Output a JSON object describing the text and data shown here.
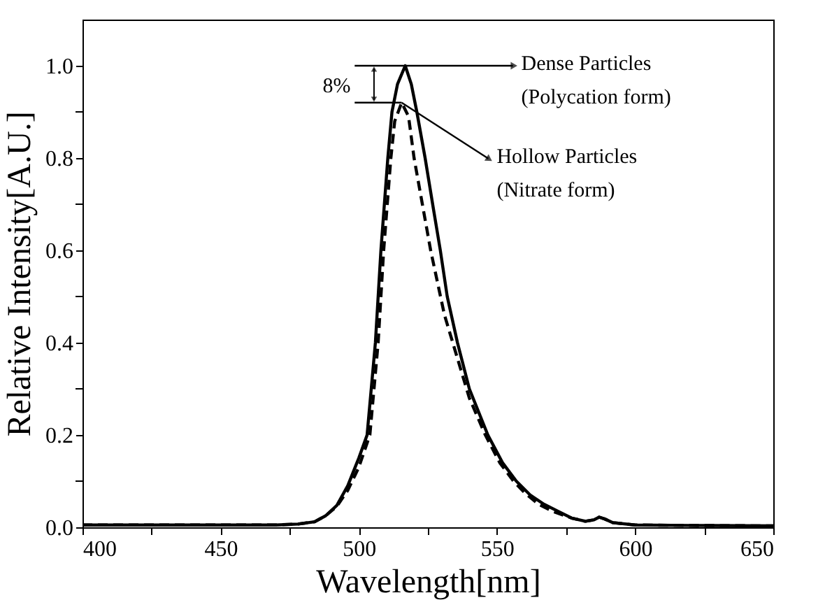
{
  "chart_data": {
    "type": "line",
    "xlabel": "Wavelength[nm]",
    "ylabel": "Relative Intensity[A.U.]",
    "xlim": [
      400,
      650
    ],
    "ylim": [
      0,
      1.1
    ],
    "xticks": [
      400,
      {
        "value": 425,
        "label": null
      },
      450,
      {
        "value": 475,
        "label": null
      },
      500,
      {
        "value": 525,
        "label": null
      },
      550,
      {
        "value": 575,
        "label": null
      },
      600,
      {
        "value": 625,
        "label": null
      },
      650
    ],
    "yticks": [
      {
        "value": 0,
        "label": "0.0"
      },
      {
        "value": 0.1,
        "label": null
      },
      0.2,
      {
        "value": 0.3,
        "label": null
      },
      0.4,
      {
        "value": 0.5,
        "label": null
      },
      0.6,
      {
        "value": 0.7,
        "label": null
      },
      0.8,
      {
        "value": 0.9,
        "label": null
      },
      {
        "value": 1,
        "label": "1.0"
      }
    ],
    "legend": "top right",
    "series": [
      {
        "name": "Dense Particles\n(Polycation form)",
        "color": "#000000",
        "line_style": "solid",
        "x": [
          400,
          440,
          470,
          478,
          484,
          488,
          492,
          496,
          500,
          503,
          506,
          508,
          510.5,
          512,
          514,
          516.8,
          519,
          521,
          524,
          527,
          529.5,
          532,
          535.7,
          540,
          546.7,
          552,
          557,
          562,
          567,
          572,
          577,
          582,
          585,
          587,
          589,
          592,
          600,
          620,
          650
        ],
        "values": [
          0.005,
          0.005,
          0.005,
          0.007,
          0.012,
          0.025,
          0.047,
          0.09,
          0.15,
          0.2,
          0.4,
          0.6,
          0.8,
          0.9,
          0.96,
          1.0,
          0.96,
          0.9,
          0.8,
          0.69,
          0.6,
          0.5,
          0.4,
          0.3,
          0.2,
          0.14,
          0.1,
          0.07,
          0.05,
          0.035,
          0.02,
          0.013,
          0.016,
          0.022,
          0.018,
          0.01,
          0.005,
          0.004,
          0.003
        ]
      },
      {
        "name": "Hollow Particles\n(Nitrate form)",
        "color": "#000000",
        "line_style": "dashed",
        "x": [
          400,
          440,
          470,
          478,
          484,
          488,
          492,
          496,
          500,
          504,
          507,
          509,
          511.6,
          513,
          515.5,
          518,
          520,
          523,
          526,
          528.5,
          531,
          534,
          540,
          545.8,
          551,
          556,
          560,
          565,
          570,
          577,
          582,
          585,
          587,
          589,
          592,
          600,
          620,
          650
        ],
        "values": [
          0.005,
          0.005,
          0.005,
          0.007,
          0.012,
          0.025,
          0.045,
          0.08,
          0.13,
          0.2,
          0.4,
          0.6,
          0.8,
          0.88,
          0.92,
          0.89,
          0.8,
          0.7,
          0.6,
          0.53,
          0.46,
          0.4,
          0.28,
          0.2,
          0.14,
          0.1,
          0.075,
          0.05,
          0.035,
          0.02,
          0.013,
          0.016,
          0.022,
          0.018,
          0.01,
          0.005,
          0.004,
          0.003
        ]
      }
    ],
    "annotations": [
      {
        "text": "8%",
        "x": 516.8,
        "y": 1.0
      }
    ]
  }
}
